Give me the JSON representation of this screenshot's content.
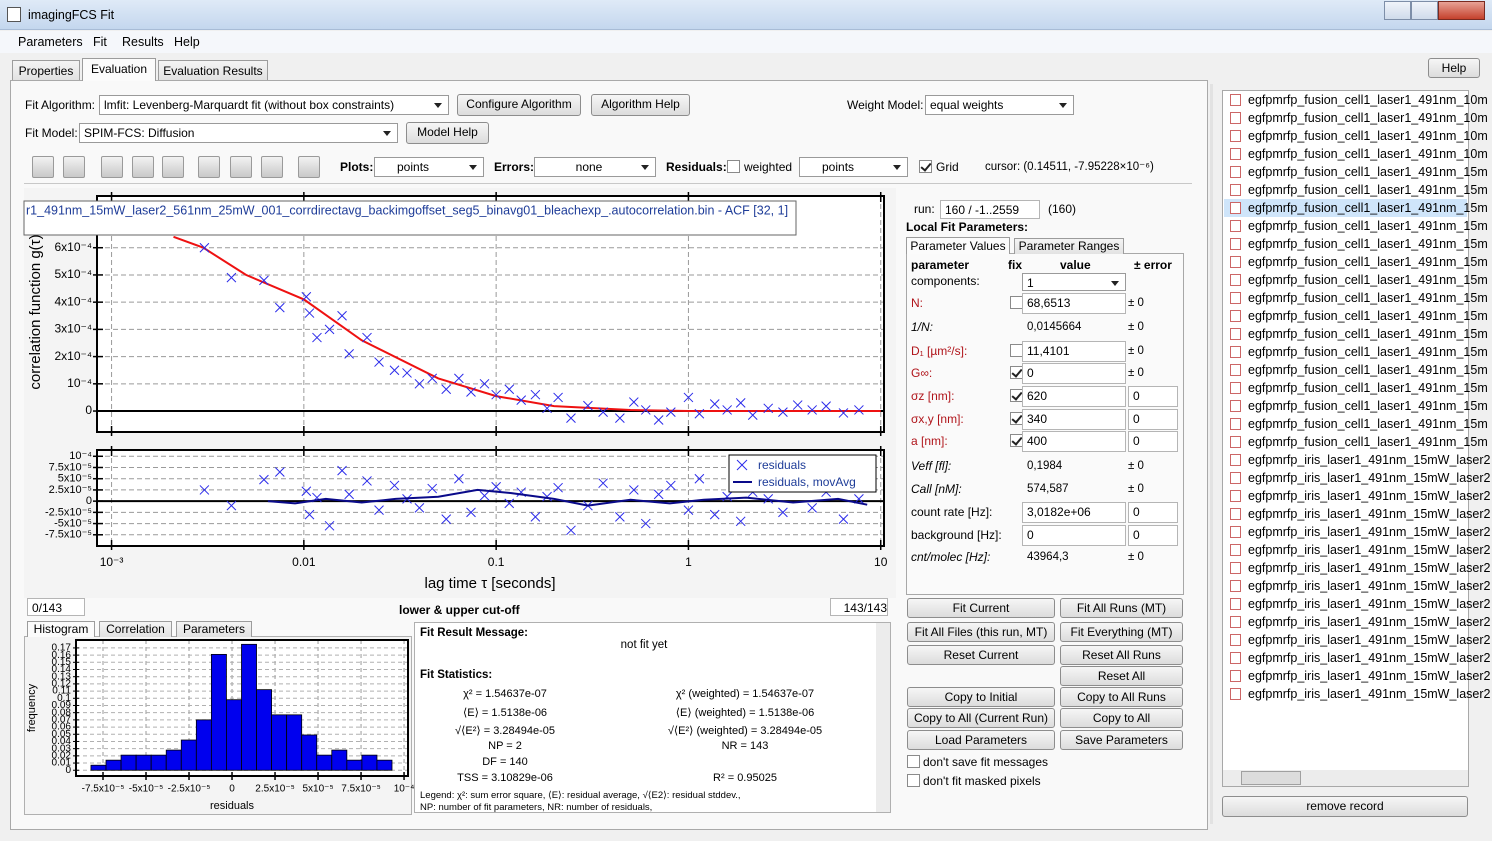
{
  "window": {
    "title": "imagingFCS Fit"
  },
  "menu": [
    "Parameters",
    "Fit",
    "Results",
    "Help"
  ],
  "tabs": {
    "items": [
      "Properties",
      "Evaluation",
      "Evaluation Results"
    ],
    "active": 1
  },
  "help_button": "Help",
  "fit_algorithm": {
    "label": "Fit Algorithm:",
    "value": "lmfit: Levenberg-Marquardt fit (without box constraints)",
    "configure": "Configure Algorithm",
    "help": "Algorithm Help"
  },
  "weight_model": {
    "label": "Weight Model:",
    "value": "equal weights"
  },
  "fit_model": {
    "label": "Fit Model:",
    "value": "SPIM-FCS: Diffusion",
    "help": "Model Help"
  },
  "toolbar": {
    "plots_label": "Plots:",
    "plots_value": "points",
    "errors_label": "Errors:",
    "errors_value": "none",
    "residuals_label": "Residuals:",
    "weighted_label": "weighted",
    "weighted": false,
    "residuals_value": "points",
    "grid_label": "Grid",
    "grid": true,
    "cursor": "cursor: (0.14511, -7.95228×10⁻⁶)"
  },
  "acf_plot": {
    "type": "scatter",
    "title": "r1_491nm_15mW_laser2_561nm_25mW_001_corrdirectavg_backimgoffset_seg5_binavg01_bleachexp_.autocorrelation.bin - ACF [32, 1]",
    "ylabel": "correlation function g(τ)",
    "log_x": true,
    "xlim": [
      0.00084,
      10.4
    ],
    "ylim": [
      -7.7e-05,
      0.00079
    ],
    "yticks": [
      0,
      {
        "value": 0.0001,
        "label": "10⁻⁴"
      },
      {
        "value": 0.0002,
        "label": "2x10⁻⁴"
      },
      {
        "value": 0.0003,
        "label": "3x10⁻⁴"
      },
      {
        "value": 0.0004,
        "label": "4x10⁻⁴"
      },
      {
        "value": 0.0005,
        "label": "5x10⁻⁴"
      },
      {
        "value": 0.0006,
        "label": "6x10⁻⁴"
      }
    ],
    "points": {
      "color": "#2b2bea",
      "x": [
        0.00304,
        0.0042,
        0.0062,
        0.0075,
        0.0103,
        0.0107,
        0.0117,
        0.0136,
        0.0158,
        0.0172,
        0.0213,
        0.0246,
        0.0296,
        0.0344,
        0.0399,
        0.0465,
        0.055,
        0.064,
        0.074,
        0.087,
        0.1,
        0.117,
        0.135,
        0.16,
        0.184,
        0.21,
        0.245,
        0.3,
        0.36,
        0.44,
        0.52,
        0.6,
        0.7,
        0.81,
        1.0,
        1.14,
        1.37,
        1.59,
        1.87,
        2.16,
        2.6,
        3.1,
        3.7,
        4.4,
        5.2,
        6.4,
        7.7
      ],
      "values": [
        0.0006,
        0.00049,
        0.00048,
        0.00038,
        0.00042,
        0.00036,
        0.00027,
        0.0003,
        0.00035,
        0.00021,
        0.00027,
        0.00018,
        0.00015,
        0.00014,
        0.0001,
        0.00012,
        8e-05,
        0.00012,
        7e-05,
        0.0001,
        6e-05,
        8e-05,
        4e-05,
        6e-05,
        1e-05,
        5e-05,
        -2.6e-05,
        2e-05,
        -4e-06,
        -2.6e-05,
        3.3e-05,
        4e-06,
        -3.3e-05,
        -4e-06,
        5e-05,
        -1e-05,
        2.6e-05,
        4e-06,
        3e-05,
        -1.5e-05,
        1e-05,
        -4e-06,
        2.2e-05,
        4e-06,
        1.8e-05,
        -7e-06,
        4e-06
      ]
    },
    "fit": {
      "color": "#ee1111",
      "x": [
        0.0021,
        0.003,
        0.005,
        0.01,
        0.02,
        0.05,
        0.1,
        0.2,
        0.5,
        1,
        10
      ],
      "values": [
        0.00064,
        0.0006,
        0.0005,
        0.00041,
        0.00026,
        0.00012,
        5.5e-05,
        1.8e-05,
        4e-06,
        0,
        0
      ]
    }
  },
  "residuals_plot": {
    "type": "scatter",
    "xlabel": "lag time τ [seconds]",
    "log_x": true,
    "xlim": [
      0.00084,
      10.4
    ],
    "ylim": [
      -0.0001,
      0.000114
    ],
    "xticks": [
      {
        "value": 0.001,
        "label": "10⁻³"
      },
      0.01,
      0.1,
      1,
      10
    ],
    "yticks": [
      {
        "value": -7.5e-05,
        "label": "-7.5x10⁻⁵"
      },
      {
        "value": -5e-05,
        "label": "-5x10⁻⁵"
      },
      {
        "value": -2.5e-05,
        "label": "-2.5x10⁻⁵"
      },
      0,
      {
        "value": 2.5e-05,
        "label": "2.5x10⁻⁵"
      },
      {
        "value": 5e-05,
        "label": "5x10⁻⁵"
      },
      {
        "value": 7.5e-05,
        "label": "7.5x10⁻⁵"
      },
      {
        "value": 0.0001,
        "label": "10⁻⁴"
      }
    ],
    "series": [
      {
        "name": "residuals",
        "color": "#2b2bea",
        "x": [
          0.00304,
          0.0042,
          0.0062,
          0.0075,
          0.0103,
          0.0107,
          0.0117,
          0.0136,
          0.0158,
          0.0172,
          0.0213,
          0.0246,
          0.0296,
          0.0344,
          0.0399,
          0.0465,
          0.055,
          0.064,
          0.074,
          0.087,
          0.1,
          0.117,
          0.135,
          0.16,
          0.184,
          0.21,
          0.245,
          0.3,
          0.36,
          0.44,
          0.52,
          0.6,
          0.7,
          0.81,
          1.0,
          1.14,
          1.37,
          1.59,
          1.87,
          2.16,
          2.6,
          3.1,
          3.7,
          4.4,
          5.2,
          6.4,
          7.7
        ],
        "values": [
          2.5e-05,
          -1e-05,
          4.8e-05,
          6.5e-05,
          2.2e-05,
          -3e-05,
          8e-06,
          -5.5e-05,
          6.8e-05,
          1.5e-05,
          4.5e-05,
          -2e-05,
          3.5e-05,
          5e-06,
          -1.5e-05,
          2.8e-05,
          -4e-05,
          5e-05,
          -2.5e-05,
          1.2e-05,
          3.2e-05,
          -5e-06,
          2e-05,
          -3.5e-05,
          1e-05,
          3e-05,
          -6.5e-05,
          -1e-05,
          4e-05,
          -3.5e-05,
          2.5e-05,
          -5e-05,
          1.5e-05,
          3.5e-05,
          -2e-05,
          5e-05,
          -3e-05,
          1e-05,
          -4.5e-05,
          2e-05,
          5e-06,
          -2.5e-05,
          4.5e-05,
          -1.5e-05,
          2e-05,
          -4e-05,
          5e-06
        ]
      },
      {
        "name": "residuals, movAvg",
        "color": "#0a0a8a",
        "x": [
          0.0065,
          0.009,
          0.013,
          0.02,
          0.03,
          0.05,
          0.08,
          0.12,
          0.2,
          0.3,
          0.5,
          0.8,
          1.2,
          2,
          3.5,
          6,
          8.5
        ],
        "values": [
          0,
          -5e-06,
          5e-06,
          -3e-06,
          5e-06,
          1e-05,
          2.5e-05,
          1.8e-05,
          5e-06,
          -1e-05,
          3e-06,
          -5e-06,
          3e-06,
          8e-06,
          -3e-06,
          5e-06,
          -8e-06
        ]
      }
    ]
  },
  "cutoff": {
    "lower": "0/143",
    "label": "lower & upper cut-off",
    "upper": "143/143"
  },
  "histogram": {
    "type": "histogram",
    "tabs": [
      "Histogram",
      "Correlation",
      "Parameters"
    ],
    "xlabel": "residuals",
    "ylabel": "frequency",
    "color": "#0000ee",
    "xlim": [
      -9.07e-05,
      0.0001023
    ],
    "ylim": [
      -0.008,
      0.181
    ],
    "xticks": [
      {
        "value": -7.5e-05,
        "label": "-7.5x10⁻⁵"
      },
      {
        "value": -5e-05,
        "label": "-5x10⁻⁵"
      },
      {
        "value": -2.5e-05,
        "label": "-2.5x10⁻⁵"
      },
      0,
      {
        "value": 2.5e-05,
        "label": "2.5x10⁻⁵"
      },
      {
        "value": 5e-05,
        "label": "5x10⁻⁵"
      },
      {
        "value": 7.5e-05,
        "label": "7.5x10⁻⁵"
      },
      {
        "value": 0.0001,
        "label": "10⁻⁴"
      }
    ],
    "yticks": [
      0,
      0.01,
      0.02,
      0.03,
      0.04,
      0.05,
      0.06,
      0.07,
      0.08,
      0.09,
      0.1,
      0.11,
      0.12,
      0.13,
      0.14,
      0.15,
      0.16,
      0.17
    ],
    "bins": [
      -8.2e-05,
      -7.325e-05,
      -6.45e-05,
      -5.575e-05,
      -4.7e-05,
      -3.825e-05,
      -2.95e-05,
      -2.075e-05,
      -1.2e-05,
      -3.25e-06,
      5.5e-06,
      1.425e-05,
      2.3e-05,
      3.175e-05,
      4.05e-05,
      4.925e-05,
      5.8e-05,
      6.675e-05,
      7.55e-05,
      8.425e-05,
      9.3e-05
    ],
    "values": [
      0.007,
      0.014,
      0.021,
      0.021,
      0.021,
      0.028,
      0.042,
      0.07,
      0.161,
      0.098,
      0.175,
      0.112,
      0.077,
      0.077,
      0.049,
      0.021,
      0.028,
      0.014,
      0.021,
      0.014
    ]
  },
  "fit_result": {
    "message_label": "Fit Result Message:",
    "message": "not fit yet",
    "statistics_label": "Fit Statistics:",
    "left": [
      "χ² = 1.54637e-07",
      "⟨E⟩ = 1.5138e-06",
      "√⟨E²⟩ = 3.28494e-05",
      "NP = 2",
      "DF = 140",
      "TSS = 3.10829e-06"
    ],
    "right": [
      "χ² (weighted) = 1.54637e-07",
      "⟨E⟩ (weighted) = 1.5138e-06",
      "√⟨E²⟩ (weighted) = 3.28494e-05",
      "NR = 143",
      "R² = 0.95025"
    ],
    "legend": [
      "Legend: χ²: sum error square, ⟨E⟩: residual average, √⟨E2⟩: residual stddev.,",
      "NP: number of fit parameters, NR: number of residuals,"
    ]
  },
  "run": {
    "label": "run:",
    "value": "160 / -1..2559",
    "current": "(160)"
  },
  "local_params": {
    "title": "Local Fit Parameters:",
    "tabs": [
      "Parameter Values",
      "Parameter Ranges"
    ],
    "headers": [
      "parameter",
      "fix",
      "value",
      "± error"
    ],
    "components_label": "components:",
    "components_value": "1",
    "rows": [
      {
        "name": "N:",
        "fix": false,
        "value": "68,6513",
        "error": "± 0"
      },
      {
        "name": "1/N:",
        "value": "0,0145664",
        "error": "± 0"
      },
      {
        "name": "D₁ [µm²/s]:",
        "fix": false,
        "value": "11,4101",
        "error": "± 0"
      },
      {
        "name": "G∞:",
        "fix": true,
        "value": "0",
        "error": "± 0"
      },
      {
        "name": "σz [nm]:",
        "fix": true,
        "value": "620",
        "error": "0"
      },
      {
        "name": "σx,y [nm]:",
        "fix": true,
        "value": "340",
        "error": "0"
      },
      {
        "name": "a [nm]:",
        "fix": true,
        "value": "400",
        "error": "0"
      },
      {
        "name": "Veff [fl]:",
        "value": "0,1984",
        "error": "± 0"
      },
      {
        "name": "Call [nM]:",
        "value": "574,587",
        "error": "± 0"
      },
      {
        "name": "count rate [Hz]:",
        "value": "3,0182e+06",
        "error": "0"
      },
      {
        "name": "background [Hz]:",
        "value": "0",
        "error": "0"
      },
      {
        "name": "cnt/molec [Hz]:",
        "value": "43964,3",
        "error": "± 0"
      }
    ]
  },
  "fit_buttons": [
    "Fit Current",
    "Fit All Runs (MT)",
    "Fit All Files (this run, MT)",
    "Fit Everything (MT)",
    "Reset Current",
    "Reset All Runs",
    "Reset All",
    "Copy to Initial",
    "Copy to All Runs",
    "Copy to All (Current Run)",
    "Copy to All",
    "Load Parameters",
    "Save Parameters"
  ],
  "options": [
    "don't save fit messages",
    "don't fit masked pixels"
  ],
  "files": {
    "selected": 6,
    "items": [
      "egfpmrfp_fusion_cell1_laser1_491nm_10m",
      "egfpmrfp_fusion_cell1_laser1_491nm_10m",
      "egfpmrfp_fusion_cell1_laser1_491nm_10m",
      "egfpmrfp_fusion_cell1_laser1_491nm_10m",
      "egfpmrfp_fusion_cell1_laser1_491nm_15m",
      "egfpmrfp_fusion_cell1_laser1_491nm_15m",
      "egfpmrfp_fusion_cell1_laser1_491nm_15m",
      "egfpmrfp_fusion_cell1_laser1_491nm_15m",
      "egfpmrfp_fusion_cell1_laser1_491nm_15m",
      "egfpmrfp_fusion_cell1_laser1_491nm_15m",
      "egfpmrfp_fusion_cell1_laser1_491nm_15m",
      "egfpmrfp_fusion_cell1_laser1_491nm_15m",
      "egfpmrfp_fusion_cell1_laser1_491nm_15m",
      "egfpmrfp_fusion_cell1_laser1_491nm_15m",
      "egfpmrfp_fusion_cell1_laser1_491nm_15m",
      "egfpmrfp_fusion_cell1_laser1_491nm_15m",
      "egfpmrfp_fusion_cell1_laser1_491nm_15m",
      "egfpmrfp_fusion_cell1_laser1_491nm_15m",
      "egfpmrfp_fusion_cell1_laser1_491nm_15m",
      "egfpmrfp_fusion_cell1_laser1_491nm_15m",
      "egfpmrfp_iris_laser1_491nm_15mW_laser2",
      "egfpmrfp_iris_laser1_491nm_15mW_laser2",
      "egfpmrfp_iris_laser1_491nm_15mW_laser2",
      "egfpmrfp_iris_laser1_491nm_15mW_laser2",
      "egfpmrfp_iris_laser1_491nm_15mW_laser2",
      "egfpmrfp_iris_laser1_491nm_15mW_laser2",
      "egfpmrfp_iris_laser1_491nm_15mW_laser2",
      "egfpmrfp_iris_laser1_491nm_15mW_laser2",
      "egfpmrfp_iris_laser1_491nm_15mW_laser2",
      "egfpmrfp_iris_laser1_491nm_15mW_laser2",
      "egfpmrfp_iris_laser1_491nm_15mW_laser2",
      "egfpmrfp_iris_laser1_491nm_15mW_laser2",
      "egfpmrfp_iris_laser1_491nm_15mW_laser2",
      "egfpmrfp_iris_laser1_491nm_15mW_laser2"
    ]
  },
  "remove_button": "remove record"
}
